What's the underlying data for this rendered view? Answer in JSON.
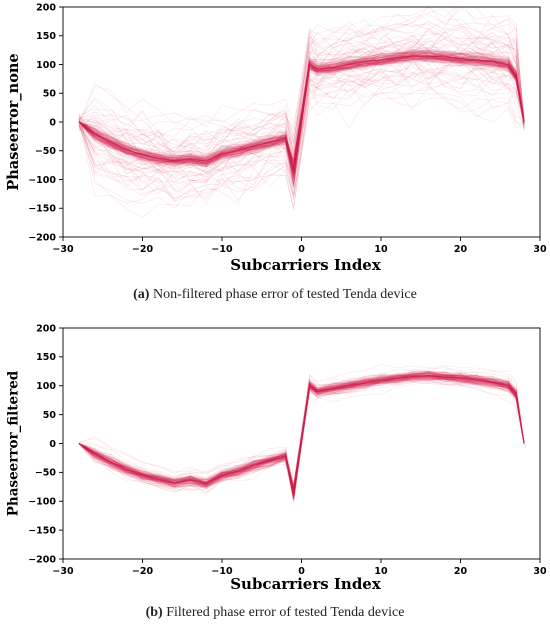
{
  "figure": {
    "panels": [
      {
        "caption_letter": "(a)",
        "caption_text": "Non-filtered phase error of tested Tenda device"
      },
      {
        "caption_letter": "(b)",
        "caption_text": "Filtered phase error of tested Tenda device"
      }
    ]
  },
  "colors": {
    "trace": "#d21f4a",
    "axis": "#000000"
  },
  "chart_data": [
    {
      "type": "line",
      "title": "",
      "xlabel": "Subcarriers Index",
      "ylabel": "Phaseerror_none",
      "xlim": [
        -30,
        30
      ],
      "ylim": [
        -200,
        200
      ],
      "xticks": [
        -30,
        -20,
        -10,
        0,
        10,
        20,
        30
      ],
      "yticks": [
        200,
        150,
        100,
        50,
        0,
        -50,
        -100,
        -150,
        -200
      ],
      "grid": false,
      "legend": "none",
      "note": "many overlaid traces; mean trace values",
      "x": [
        -28,
        -26,
        -24,
        -22,
        -20,
        -18,
        -16,
        -14,
        -12,
        -10,
        -8,
        -6,
        -4,
        -2,
        -1,
        1,
        2,
        4,
        6,
        8,
        10,
        12,
        14,
        16,
        18,
        20,
        22,
        24,
        26,
        27,
        28
      ],
      "series": [
        {
          "values": [
            0,
            -20,
            -35,
            -48,
            -57,
            -63,
            -67,
            -64,
            -68,
            -55,
            -50,
            -42,
            -35,
            -28,
            -85,
            100,
            92,
            95,
            100,
            105,
            108,
            112,
            115,
            115,
            113,
            110,
            108,
            105,
            100,
            80,
            0
          ]
        }
      ]
    },
    {
      "type": "line",
      "title": "",
      "xlabel": "Subcarriers Index",
      "ylabel": "Phaseerror_filtered",
      "xlim": [
        -30,
        30
      ],
      "ylim": [
        -200,
        200
      ],
      "xticks": [
        -30,
        -20,
        -10,
        0,
        10,
        20,
        30
      ],
      "yticks": [
        200,
        150,
        100,
        50,
        0,
        -50,
        -100,
        -150,
        -200
      ],
      "grid": false,
      "legend": "none",
      "note": "many overlaid traces; mean trace values",
      "x": [
        -28,
        -26,
        -24,
        -22,
        -20,
        -18,
        -16,
        -14,
        -12,
        -10,
        -8,
        -6,
        -4,
        -2,
        -1,
        1,
        2,
        4,
        6,
        8,
        10,
        12,
        14,
        16,
        18,
        20,
        22,
        24,
        26,
        27,
        28
      ],
      "series": [
        {
          "values": [
            0,
            -18,
            -32,
            -45,
            -55,
            -62,
            -68,
            -63,
            -70,
            -55,
            -48,
            -38,
            -30,
            -22,
            -85,
            100,
            90,
            95,
            100,
            105,
            110,
            113,
            116,
            117,
            115,
            113,
            110,
            106,
            100,
            85,
            0
          ]
        }
      ]
    }
  ]
}
